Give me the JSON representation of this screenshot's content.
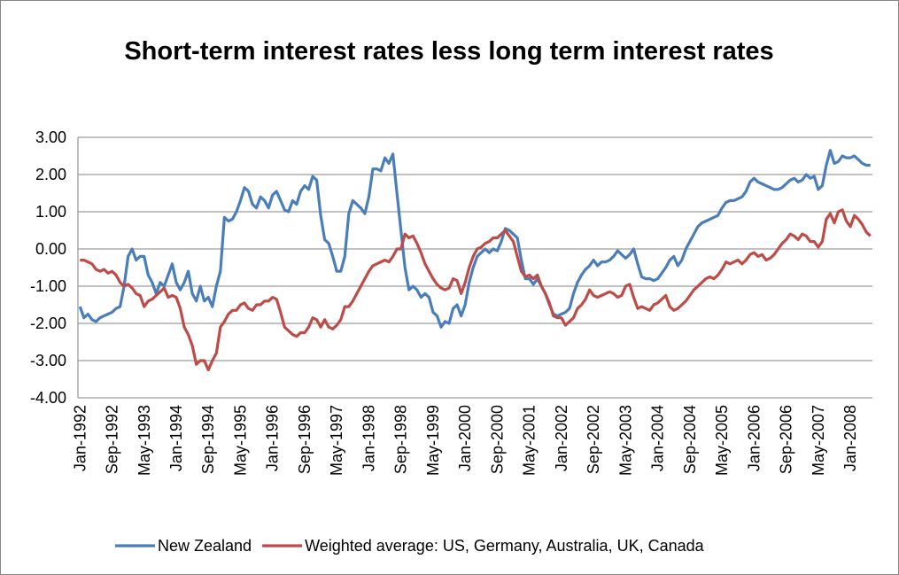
{
  "chart_data": {
    "type": "line",
    "title": "Short-term interest rates less long term interest rates",
    "categories": [
      "Jan-1992",
      null,
      null,
      null,
      null,
      null,
      null,
      null,
      "Sep-1992",
      null,
      null,
      null,
      null,
      null,
      null,
      null,
      "May-1993",
      null,
      null,
      null,
      null,
      null,
      null,
      null,
      "Jan-1994",
      null,
      null,
      null,
      null,
      null,
      null,
      null,
      "Sep-1994",
      null,
      null,
      null,
      null,
      null,
      null,
      null,
      "May-1995",
      null,
      null,
      null,
      null,
      null,
      null,
      null,
      "Jan-1996",
      null,
      null,
      null,
      null,
      null,
      null,
      null,
      "Sep-1996",
      null,
      null,
      null,
      null,
      null,
      null,
      null,
      "May-1997",
      null,
      null,
      null,
      null,
      null,
      null,
      null,
      "Jan-1998",
      null,
      null,
      null,
      null,
      null,
      null,
      null,
      "Sep-1998",
      null,
      null,
      null,
      null,
      null,
      null,
      null,
      "May-1999",
      null,
      null,
      null,
      null,
      null,
      null,
      null,
      "Jan-2000",
      null,
      null,
      null,
      null,
      null,
      null,
      null,
      "Sep-2000",
      null,
      null,
      null,
      null,
      null,
      null,
      null,
      "May-2001",
      null,
      null,
      null,
      null,
      null,
      null,
      null,
      "Jan-2002",
      null,
      null,
      null,
      null,
      null,
      null,
      null,
      "Sep-2002",
      null,
      null,
      null,
      null,
      null,
      null,
      null,
      "May-2003",
      null,
      null,
      null,
      null,
      null,
      null,
      null,
      "Jan-2004",
      null,
      null,
      null,
      null,
      null,
      null,
      null,
      "Sep-2004",
      null,
      null,
      null,
      null,
      null,
      null,
      null,
      "May-2005",
      null,
      null,
      null,
      null,
      null,
      null,
      null,
      "Jan-2006",
      null,
      null,
      null,
      null,
      null,
      null,
      null,
      "Sep-2006",
      null,
      null,
      null,
      null,
      null,
      null,
      null,
      "May-2007",
      null,
      null,
      null,
      null,
      null,
      null,
      null,
      "Jan-2008",
      null,
      null,
      null,
      null,
      null
    ],
    "series": [
      {
        "name": "New Zealand",
        "color": "#4a7ebb",
        "values": [
          -1.55,
          -1.85,
          -1.75,
          -1.9,
          -1.95,
          -1.85,
          -1.8,
          -1.75,
          -1.7,
          -1.6,
          -1.55,
          -1.0,
          -0.2,
          0.0,
          -0.3,
          -0.2,
          -0.2,
          -0.7,
          -0.9,
          -1.2,
          -0.9,
          -1.0,
          -0.7,
          -0.4,
          -0.9,
          -1.1,
          -0.9,
          -0.6,
          -1.2,
          -1.4,
          -1.0,
          -1.4,
          -1.3,
          -1.55,
          -1.0,
          -0.6,
          0.85,
          0.75,
          0.8,
          1.0,
          1.3,
          1.65,
          1.55,
          1.2,
          1.1,
          1.4,
          1.3,
          1.1,
          1.45,
          1.55,
          1.3,
          1.05,
          1.0,
          1.3,
          1.2,
          1.55,
          1.7,
          1.6,
          1.95,
          1.85,
          0.9,
          0.25,
          0.15,
          -0.2,
          -0.6,
          -0.6,
          -0.2,
          0.95,
          1.3,
          1.2,
          1.1,
          0.95,
          1.4,
          2.15,
          2.15,
          2.1,
          2.45,
          2.3,
          2.55,
          1.5,
          0.5,
          -0.5,
          -1.1,
          -1.0,
          -1.1,
          -1.3,
          -1.2,
          -1.3,
          -1.7,
          -1.8,
          -2.1,
          -1.95,
          -2.0,
          -1.6,
          -1.5,
          -1.8,
          -1.5,
          -0.9,
          -0.5,
          -0.2,
          -0.1,
          0.0,
          -0.1,
          0.0,
          -0.05,
          0.2,
          0.55,
          0.5,
          0.4,
          0.3,
          -0.3,
          -0.8,
          -0.8,
          -0.95,
          -0.8,
          -1.0,
          -1.2,
          -1.5,
          -1.75,
          -1.8,
          -1.75,
          -1.7,
          -1.6,
          -1.2,
          -0.9,
          -0.7,
          -0.55,
          -0.45,
          -0.3,
          -0.45,
          -0.35,
          -0.35,
          -0.3,
          -0.2,
          -0.05,
          -0.15,
          -0.25,
          -0.15,
          0.0,
          -0.4,
          -0.75,
          -0.8,
          -0.8,
          -0.85,
          -0.8,
          -0.65,
          -0.5,
          -0.3,
          -0.2,
          -0.45,
          -0.3,
          0.0,
          0.2,
          0.4,
          0.6,
          0.7,
          0.75,
          0.8,
          0.85,
          0.9,
          1.1,
          1.25,
          1.3,
          1.3,
          1.35,
          1.4,
          1.55,
          1.8,
          1.9,
          1.8,
          1.75,
          1.7,
          1.65,
          1.6,
          1.6,
          1.65,
          1.75,
          1.85,
          1.9,
          1.8,
          1.85,
          2.0,
          1.9,
          1.95,
          1.6,
          1.7,
          2.25,
          2.65,
          2.3,
          2.35,
          2.5,
          2.45,
          2.45,
          2.5,
          2.4,
          2.3,
          2.25,
          2.25
        ]
      },
      {
        "name": "Weighted average: US, Germany, Australia, UK, Canada",
        "color": "#be4b48",
        "values": [
          -0.3,
          -0.3,
          -0.35,
          -0.4,
          -0.55,
          -0.6,
          -0.55,
          -0.65,
          -0.6,
          -0.7,
          -0.9,
          -1.0,
          -0.95,
          -1.05,
          -1.2,
          -1.25,
          -1.55,
          -1.4,
          -1.35,
          -1.25,
          -1.15,
          -1.05,
          -1.3,
          -1.25,
          -1.3,
          -1.6,
          -2.1,
          -2.3,
          -2.6,
          -3.1,
          -3.0,
          -3.0,
          -3.25,
          -3.0,
          -2.8,
          -2.1,
          -1.95,
          -1.75,
          -1.65,
          -1.65,
          -1.5,
          -1.45,
          -1.6,
          -1.65,
          -1.5,
          -1.5,
          -1.4,
          -1.4,
          -1.3,
          -1.35,
          -1.7,
          -2.1,
          -2.2,
          -2.3,
          -2.35,
          -2.25,
          -2.25,
          -2.1,
          -1.85,
          -1.9,
          -2.1,
          -1.9,
          -2.1,
          -2.15,
          -2.05,
          -1.9,
          -1.55,
          -1.55,
          -1.4,
          -1.2,
          -1.0,
          -0.8,
          -0.6,
          -0.45,
          -0.4,
          -0.35,
          -0.3,
          -0.35,
          -0.2,
          0.0,
          0.0,
          0.4,
          0.3,
          0.35,
          0.15,
          -0.1,
          -0.4,
          -0.6,
          -0.8,
          -0.95,
          -1.05,
          -1.1,
          -1.05,
          -0.8,
          -0.85,
          -1.2,
          -0.9,
          -0.5,
          -0.2,
          0.0,
          0.05,
          0.15,
          0.2,
          0.3,
          0.3,
          0.4,
          0.5,
          0.35,
          0.2,
          -0.2,
          -0.6,
          -0.75,
          -0.7,
          -0.8,
          -0.7,
          -1.0,
          -1.2,
          -1.45,
          -1.8,
          -1.85,
          -1.85,
          -2.05,
          -1.95,
          -1.85,
          -1.6,
          -1.5,
          -1.35,
          -1.1,
          -1.25,
          -1.3,
          -1.25,
          -1.2,
          -1.15,
          -1.2,
          -1.3,
          -1.25,
          -1.0,
          -0.95,
          -1.3,
          -1.6,
          -1.55,
          -1.6,
          -1.65,
          -1.5,
          -1.45,
          -1.35,
          -1.25,
          -1.55,
          -1.65,
          -1.6,
          -1.5,
          -1.4,
          -1.25,
          -1.1,
          -1.0,
          -0.9,
          -0.8,
          -0.75,
          -0.8,
          -0.7,
          -0.55,
          -0.35,
          -0.4,
          -0.35,
          -0.3,
          -0.4,
          -0.3,
          -0.15,
          -0.1,
          -0.2,
          -0.15,
          -0.3,
          -0.25,
          -0.15,
          0.0,
          0.15,
          0.25,
          0.4,
          0.35,
          0.25,
          0.4,
          0.35,
          0.2,
          0.2,
          0.05,
          0.2,
          0.8,
          0.95,
          0.7,
          1.0,
          1.05,
          0.75,
          0.6,
          0.9,
          0.8,
          0.65,
          0.45,
          0.35
        ]
      }
    ],
    "ylim": [
      -4,
      3
    ],
    "yticks": [
      {
        "value": -4,
        "label": "-4.00"
      },
      {
        "value": -3,
        "label": "-3.00"
      },
      {
        "value": -2,
        "label": "-2.00"
      },
      {
        "value": -1,
        "label": "-1.00"
      },
      {
        "value": 0,
        "label": "0.00"
      },
      {
        "value": 1,
        "label": "1.00"
      },
      {
        "value": 2,
        "label": "2.00"
      },
      {
        "value": 3,
        "label": "3.00"
      }
    ],
    "grid": true,
    "legend": "bottom"
  }
}
